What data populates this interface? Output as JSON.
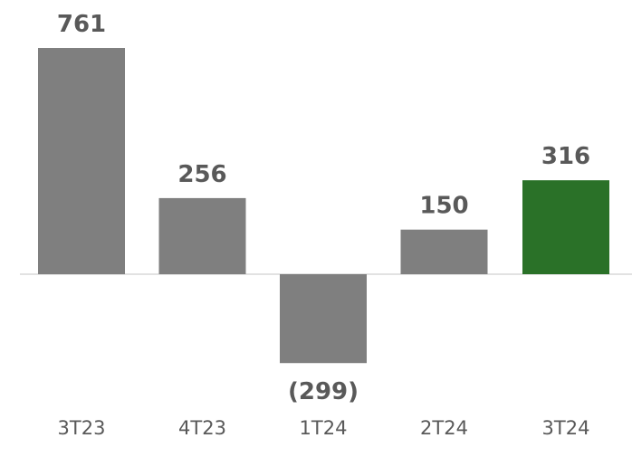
{
  "chart_data": {
    "type": "bar",
    "categories": [
      "3T23",
      "4T23",
      "1T24",
      "2T24",
      "3T24"
    ],
    "values": [
      761,
      256,
      -299,
      150,
      316
    ],
    "data_labels": [
      "761",
      "256",
      "(299)",
      "150",
      "316"
    ],
    "colors": {
      "default_bar": "#7f7f7f",
      "highlight_bar": "#2a7128",
      "label_text": "#595959",
      "baseline": "#d9d9d9"
    },
    "highlight_index": 4,
    "title": "",
    "xlabel": "",
    "ylabel": "",
    "grid": false,
    "legend": "none",
    "ylim": [
      -299,
      761
    ]
  }
}
